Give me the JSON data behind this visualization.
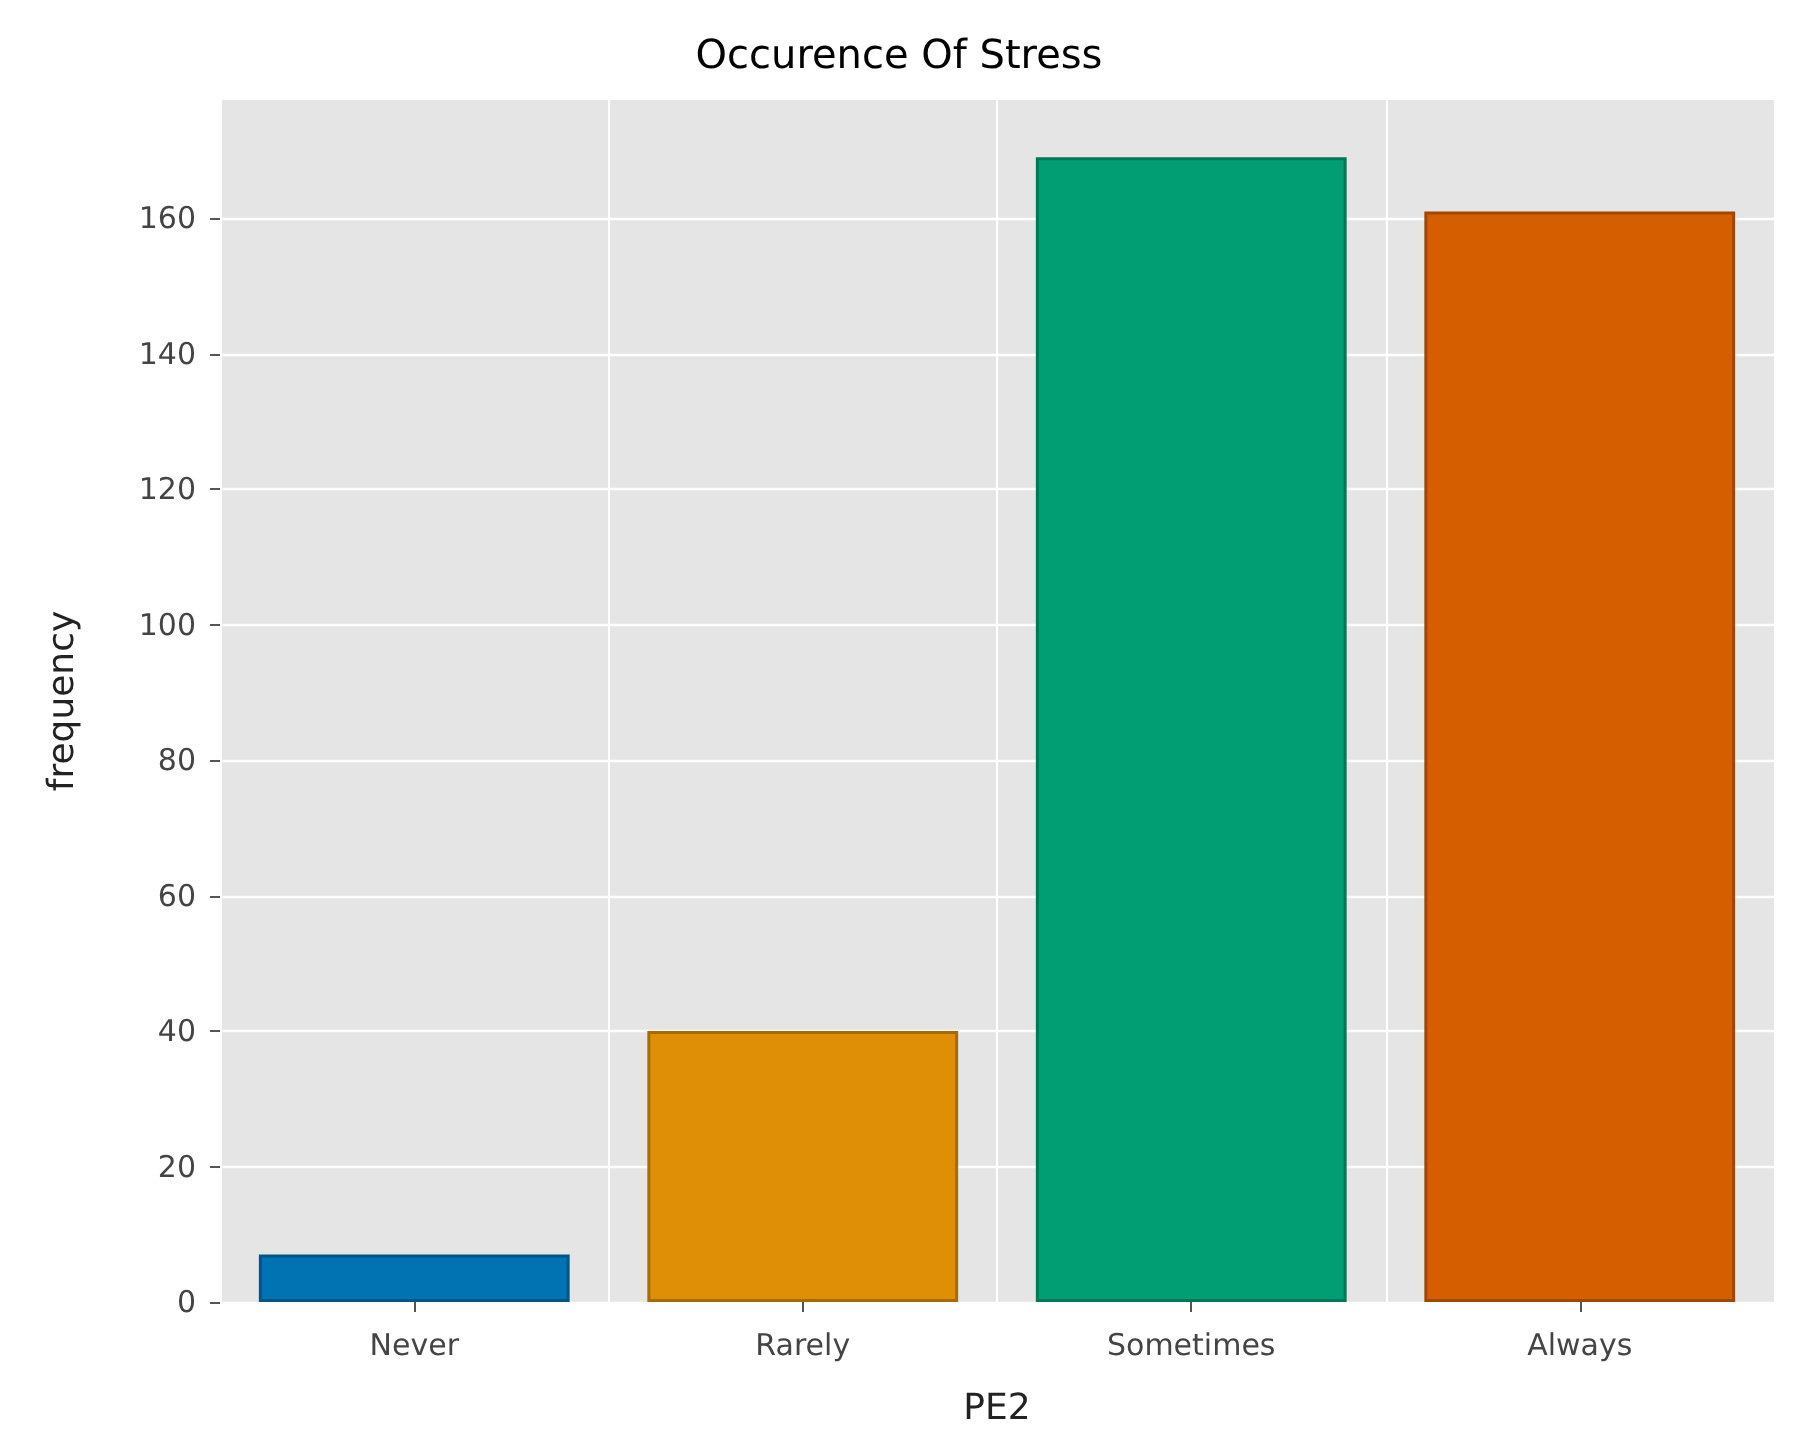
{
  "chart_data": {
    "type": "bar",
    "title": "Occurence Of Stress",
    "xlabel": "PE2",
    "ylabel": "frequency",
    "categories": [
      "Never",
      "Rarely",
      "Sometimes",
      "Always"
    ],
    "values": [
      7,
      40,
      169,
      161
    ],
    "colors": [
      "#0173b2",
      "#de8f05",
      "#029e73",
      "#d55e00"
    ],
    "ylim": [
      0,
      177.45
    ],
    "yticks": [
      0,
      20,
      40,
      60,
      80,
      100,
      120,
      140,
      160
    ],
    "grid": true
  }
}
